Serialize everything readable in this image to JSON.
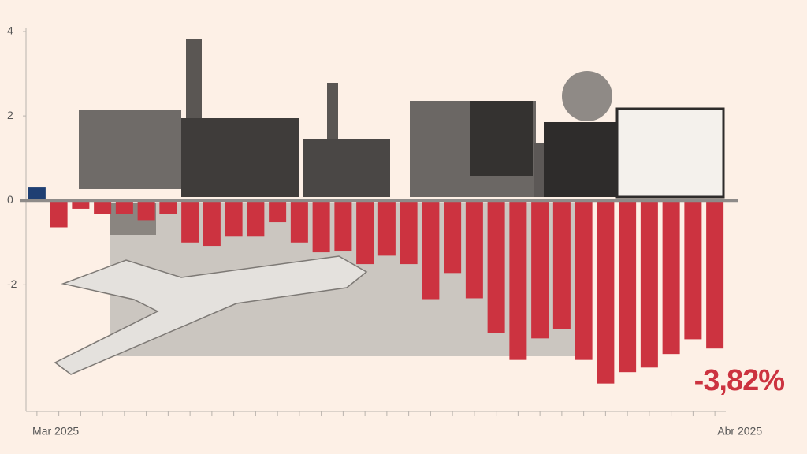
{
  "chart_data": {
    "type": "bar",
    "categories": [
      null,
      "Mar 2025",
      null,
      null,
      null,
      null,
      null,
      null,
      null,
      null,
      null,
      null,
      null,
      null,
      null,
      null,
      null,
      null,
      null,
      null,
      null,
      null,
      null,
      null,
      null,
      null,
      null,
      null,
      null,
      null,
      null,
      "Abr 2025"
    ],
    "values": [
      0.32,
      -0.64,
      -0.2,
      -0.32,
      -0.32,
      -0.47,
      -0.32,
      -1.0,
      -1.08,
      -0.86,
      -0.86,
      -0.52,
      -1.0,
      -1.23,
      -1.21,
      -1.51,
      -1.31,
      -1.51,
      -2.34,
      -1.72,
      -2.32,
      -3.14,
      -3.78,
      -3.27,
      -3.05,
      -3.78,
      -4.34,
      -4.07,
      -3.96,
      -3.64,
      -3.29,
      -3.51
    ],
    "positive_color": "#1f3f73",
    "negative_color": "#cc3340",
    "ylim": [
      -5,
      4
    ],
    "yticks": [
      4,
      2,
      0,
      -2
    ],
    "annotation": "-3,82%"
  }
}
